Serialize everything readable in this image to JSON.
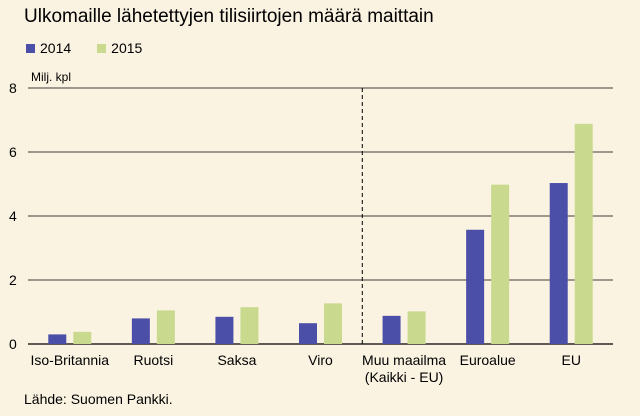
{
  "colors": {
    "background": "#fbf3e2",
    "series_2014": "#4b4fa8",
    "series_2015": "#c9d98e",
    "grid": "#000000"
  },
  "source": "Lähde: Suomen Pankki.",
  "chart_data": {
    "type": "bar",
    "title": "Ulkomaille lähetettyjen tilisiirtojen määrä maittain",
    "ylabel": "Milj. kpl",
    "xlabel": "",
    "ylim": [
      0,
      8
    ],
    "yticks": [
      "0",
      "2",
      "4",
      "6",
      "8"
    ],
    "grid": "horizontal",
    "legend_position": "top-left",
    "categories": [
      [
        "Iso-Britannia"
      ],
      [
        "Ruotsi"
      ],
      [
        "Saksa"
      ],
      [
        "Viro"
      ],
      [
        "Muu maailma",
        "(Kaikki - EU)"
      ],
      [
        "Euroalue"
      ],
      [
        "EU"
      ]
    ],
    "divider_after_index": 3,
    "series": [
      {
        "name": "2014",
        "values": [
          0.3,
          0.8,
          0.85,
          0.65,
          0.88,
          3.57,
          5.03
        ]
      },
      {
        "name": "2015",
        "values": [
          0.38,
          1.05,
          1.15,
          1.27,
          1.02,
          4.98,
          6.88
        ]
      }
    ]
  }
}
